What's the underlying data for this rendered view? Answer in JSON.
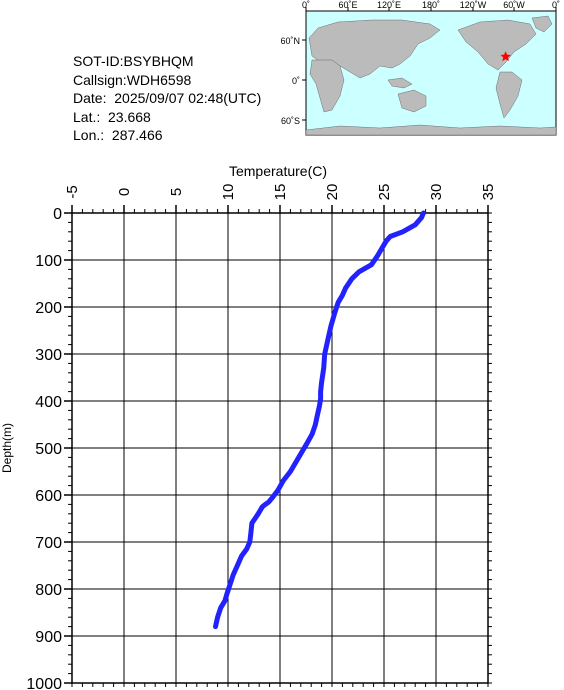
{
  "info": {
    "sot_id": "SOT-ID:BSYBHQM",
    "callsign": "Callsign:WDH6598",
    "date": "Date:  2025/09/07 02:48(UTC)",
    "lat": "Lat.:  23.668",
    "lon": "Lon.:  287.466"
  },
  "map": {
    "lon_labels": [
      "0˚",
      "60˚E",
      "120˚E",
      "180˚",
      "120˚W",
      "60˚W",
      "0˚"
    ],
    "lat_labels": [
      "60˚N",
      "0˚",
      "60˚S"
    ],
    "ocean_color": "#ccffff",
    "land_color": "#bbbbbb",
    "marker_color": "#ff0000",
    "station": {
      "lat": 23.668,
      "lon": 287.466
    }
  },
  "chart_data": {
    "type": "line",
    "title": "",
    "xlabel": "Temperature(C)",
    "ylabel": "Depth(m)",
    "xlim": [
      -5,
      35
    ],
    "ylim": [
      0,
      1000
    ],
    "y_inverted": true,
    "x_axis_position": "top",
    "x_ticks": [
      -5,
      0,
      5,
      10,
      15,
      20,
      25,
      30,
      35
    ],
    "y_ticks": [
      0,
      100,
      200,
      300,
      400,
      500,
      600,
      700,
      800,
      900,
      1000
    ],
    "grid": true,
    "line_color": "#2222ff",
    "series": [
      {
        "x": [
          28.8,
          28.6,
          28.0,
          26.8,
          25.6,
          25.2,
          24.8,
          24.4,
          23.8,
          22.6,
          21.9,
          21.3,
          21.0,
          20.6,
          20.3,
          19.9,
          19.6,
          19.3,
          19.2,
          19.0,
          18.9,
          18.9,
          18.8,
          18.6,
          18.4,
          18.1,
          17.6,
          16.8,
          16.0,
          15.3,
          14.8,
          14.3,
          13.9,
          13.6,
          13.3,
          12.9,
          12.3,
          12.2,
          12.1,
          11.8,
          11.3,
          10.9,
          10.5,
          10.2,
          9.9,
          9.7,
          9.3,
          9.0,
          8.8
        ],
        "y": [
          0,
          10,
          25,
          40,
          50,
          60,
          75,
          90,
          110,
          125,
          140,
          160,
          175,
          190,
          210,
          240,
          270,
          300,
          330,
          360,
          380,
          395,
          410,
          430,
          450,
          470,
          490,
          520,
          550,
          570,
          590,
          605,
          615,
          620,
          625,
          640,
          660,
          680,
          700,
          715,
          730,
          750,
          770,
          790,
          810,
          825,
          840,
          860,
          880
        ]
      }
    ]
  }
}
